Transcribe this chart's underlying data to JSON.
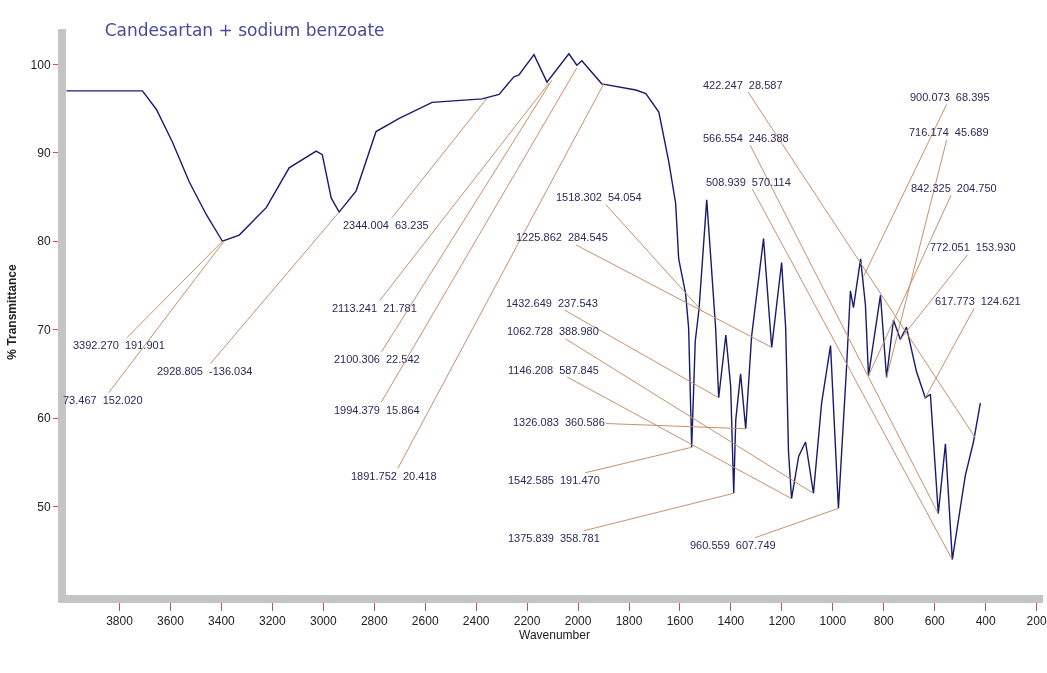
{
  "chart_data": {
    "type": "line",
    "title": "Candesartan + sodium benzoate",
    "xlabel": "Wavenumber",
    "ylabel": "% Transmittance",
    "xlim": [
      4010,
      175
    ],
    "xticks": [
      3800,
      3600,
      3400,
      3200,
      3000,
      2800,
      2600,
      2400,
      2200,
      2000,
      1800,
      1600,
      1400,
      1200,
      1000,
      800,
      600,
      400,
      200
    ],
    "ylim": [
      40,
      104
    ],
    "yticks": [
      50,
      60,
      70,
      80,
      90,
      100
    ],
    "grid": false,
    "marker": "none",
    "line_style": "solid",
    "series": [
      {
        "color": "#1a1a6e",
        "x": [
          4008,
          3710,
          3655,
          3592,
          3526,
          3459,
          3396,
          3330,
          3224,
          3134,
          3028,
          3004,
          2969,
          2938,
          2871,
          2793,
          2702,
          2573,
          2377,
          2310,
          2252,
          2232,
          2173,
          2122,
          2036,
          2005,
          1985,
          1907,
          1773,
          1734,
          1683,
          1644,
          1617,
          1605,
          1578,
          1566,
          1554,
          1540,
          1525,
          1495,
          1460,
          1448,
          1420,
          1401,
          1389,
          1381,
          1362,
          1342,
          1319,
          1272,
          1240,
          1201,
          1185,
          1174,
          1162,
          1134,
          1107,
          1076,
          1044,
          1009,
          978,
          946,
          931,
          919,
          891,
          872,
          860,
          813,
          789,
          762,
          735,
          711,
          672,
          637,
          617,
          586,
          558,
          531,
          480,
          448,
          421
        ],
        "values": [
          97,
          97,
          94.9,
          91.2,
          86.7,
          83,
          80,
          80.7,
          83.8,
          88.3,
          90.2,
          89.8,
          84.9,
          83.3,
          85.7,
          92.4,
          93.9,
          95.7,
          96.1,
          96.6,
          98.6,
          98.8,
          101.1,
          98,
          101.2,
          99.9,
          100.4,
          97.8,
          97.1,
          96.7,
          94.6,
          89,
          84.3,
          78,
          74.1,
          70.2,
          56.7,
          68.7,
          72.4,
          84.7,
          70.2,
          62.3,
          69.4,
          63.6,
          51.5,
          59.8,
          65,
          58.8,
          69.2,
          80.3,
          68,
          77.6,
          70.2,
          56.2,
          50.9,
          55.7,
          57.3,
          51.5,
          61.7,
          68.2,
          49.8,
          65.8,
          74.4,
          72.5,
          78,
          72.8,
          64.8,
          73.9,
          64.6,
          71.1,
          68.9,
          70.3,
          65.3,
          62.3,
          62.7,
          49.2,
          57.1,
          44,
          53.5,
          57.3,
          61.7
        ]
      }
    ],
    "annotations": [
      {
        "text": "3392.270  191.901",
        "x": 3396,
        "y": 80
      },
      {
        "text": "73.467  152.020",
        "x": 3390,
        "y": 80
      },
      {
        "text": "2928.805  -136.034",
        "x": 2938,
        "y": 83.3
      },
      {
        "text": "2344.004  63.235",
        "x": 2357,
        "y": 96.2
      },
      {
        "text": "2113.241  21.781",
        "x": 2114,
        "y": 97.9
      },
      {
        "text": "2100.306  22.542",
        "x": 2103,
        "y": 98.2
      },
      {
        "text": "1994.379  15.864",
        "x": 2005,
        "y": 99.6
      },
      {
        "text": "1891.752  20.418",
        "x": 1899,
        "y": 97.8
      },
      {
        "text": "1518.302  54.054",
        "x": 1510,
        "y": 72
      },
      {
        "text": "1225.862  284.545",
        "x": 1240,
        "y": 68
      },
      {
        "text": "1432.649  237.543",
        "x": 1448,
        "y": 62.3
      },
      {
        "text": "1062.728  388.980",
        "x": 1076,
        "y": 51.5
      },
      {
        "text": "1146.208  587.845",
        "x": 1162,
        "y": 50.9
      },
      {
        "text": "1326.083  360.586",
        "x": 1342,
        "y": 58.8
      },
      {
        "text": "1542.585  191.470",
        "x": 1554,
        "y": 56.7
      },
      {
        "text": "1375.839  358.781",
        "x": 1389,
        "y": 51.5
      },
      {
        "text": "960.559  607.749",
        "x": 978,
        "y": 49.8
      },
      {
        "text": "422.247  28.587",
        "x": 441,
        "y": 57.8
      },
      {
        "text": "566.554  246.388",
        "x": 586,
        "y": 49.2
      },
      {
        "text": "508.939  570.114",
        "x": 531,
        "y": 44
      },
      {
        "text": "900.073  68.395",
        "x": 880,
        "y": 76
      },
      {
        "text": "716.174  45.689",
        "x": 789,
        "y": 64.6
      },
      {
        "text": "842.325  204.750",
        "x": 860,
        "y": 64.8
      },
      {
        "text": "772.051  153.930",
        "x": 735,
        "y": 68.9
      },
      {
        "text": "617.773  124.621",
        "x": 637,
        "y": 62.3
      }
    ]
  }
}
